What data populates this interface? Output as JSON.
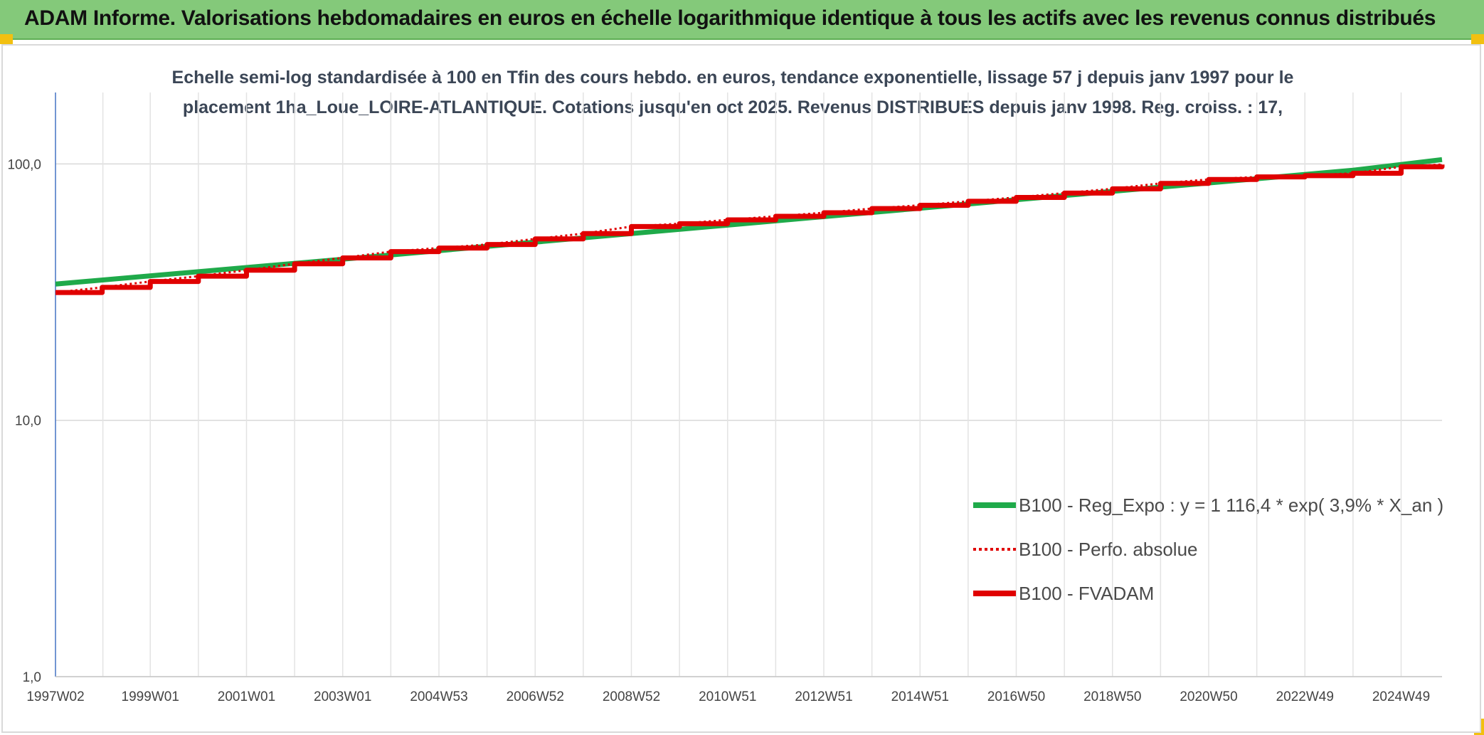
{
  "banner": {
    "title": "ADAM Informe. Valorisations hebdomadaires en euros en échelle logarithmique identique à tous les actifs avec les revenus connus distribués",
    "color": "#84c97a",
    "corner_color": "#f2c010"
  },
  "chart_data": {
    "type": "line",
    "title": "Echelle semi-log standardisée à 100 en Tfin des cours hebdo. en euros, tendance exponentielle, lissage 57 j depuis janv 1997 pour le placement 1ha_Loue_LOIRE-ATLANTIQUE. Cotations jusqu'en oct 2025. Revenus DISTRIBUES depuis janv 1998. Reg. croiss. : 17,",
    "y_scale": "log",
    "ylim": [
      1,
      190
    ],
    "y_ticks": [
      "1,0",
      "10,0",
      "100,0"
    ],
    "y_tick_values": [
      1,
      10,
      100
    ],
    "x_range": [
      1997.03,
      2025.85
    ],
    "x_tick_labels": [
      "1997W02",
      "1999W01",
      "2001W01",
      "2003W01",
      "2004W53",
      "2006W52",
      "2008W52",
      "2010W51",
      "2012W51",
      "2014W51",
      "2016W50",
      "2018W50",
      "2020W50",
      "2022W49",
      "2024W49"
    ],
    "x_tick_values": [
      1997.03,
      1999.0,
      2001.0,
      2003.0,
      2005.0,
      2007.0,
      2009.0,
      2011.0,
      2013.0,
      2015.0,
      2017.0,
      2019.0,
      2021.0,
      2023.0,
      2025.0
    ],
    "grid": true,
    "legend_position": "right",
    "series": [
      {
        "name": "B100 - Reg_Expo : y = 1 116,4 * exp( 3,9% *  X_an )",
        "color": "#1faa4a",
        "style": "solid",
        "x": [
          1997.03,
          2000.0,
          2003.0,
          2006.0,
          2009.0,
          2012.0,
          2015.0,
          2018.0,
          2021.0,
          2024.0,
          2025.85
        ],
        "y": [
          34.0,
          38.0,
          42.5,
          47.7,
          53.5,
          60.0,
          67.2,
          75.3,
          84.3,
          94.5,
          104.0
        ]
      },
      {
        "name": "B100 - Perfo. absolue",
        "color": "#e00000",
        "style": "dotted",
        "x": [
          1997.03,
          1998.0,
          1999.0,
          2000.0,
          2001.0,
          2002.0,
          2003.0,
          2004.0,
          2005.0,
          2006.0,
          2007.0,
          2008.0,
          2009.0,
          2010.0,
          2011.0,
          2012.0,
          2013.0,
          2014.0,
          2015.0,
          2016.0,
          2017.0,
          2018.0,
          2019.0,
          2020.0,
          2021.0,
          2022.0,
          2023.0,
          2024.0,
          2025.0,
          2025.85
        ],
        "y": [
          31.5,
          33.0,
          34.8,
          36.5,
          38.5,
          40.8,
          43.0,
          45.5,
          47.0,
          48.5,
          51.0,
          53.5,
          57.0,
          58.5,
          60.5,
          62.5,
          64.5,
          67.0,
          69.0,
          71.5,
          74.0,
          77.0,
          80.0,
          84.0,
          87.0,
          89.0,
          90.0,
          92.0,
          97.5,
          99.5
        ]
      },
      {
        "name": "B100 - FVADAM",
        "color": "#e00000",
        "style": "solid",
        "x": [
          1997.03,
          1998.0,
          1999.0,
          2000.0,
          2001.0,
          2002.0,
          2003.0,
          2004.0,
          2005.0,
          2006.0,
          2007.0,
          2008.0,
          2009.0,
          2010.0,
          2011.0,
          2012.0,
          2013.0,
          2014.0,
          2015.0,
          2016.0,
          2017.0,
          2018.0,
          2019.0,
          2020.0,
          2021.0,
          2022.0,
          2023.0,
          2024.0,
          2025.0,
          2025.85
        ],
        "y": [
          31.5,
          33.0,
          34.8,
          36.5,
          38.5,
          40.8,
          43.0,
          45.5,
          47.0,
          48.5,
          51.0,
          53.5,
          57.0,
          58.5,
          60.5,
          62.5,
          64.5,
          67.0,
          69.0,
          71.5,
          74.0,
          77.0,
          80.0,
          84.0,
          87.0,
          89.0,
          90.0,
          92.0,
          97.5,
          99.5
        ]
      }
    ]
  }
}
